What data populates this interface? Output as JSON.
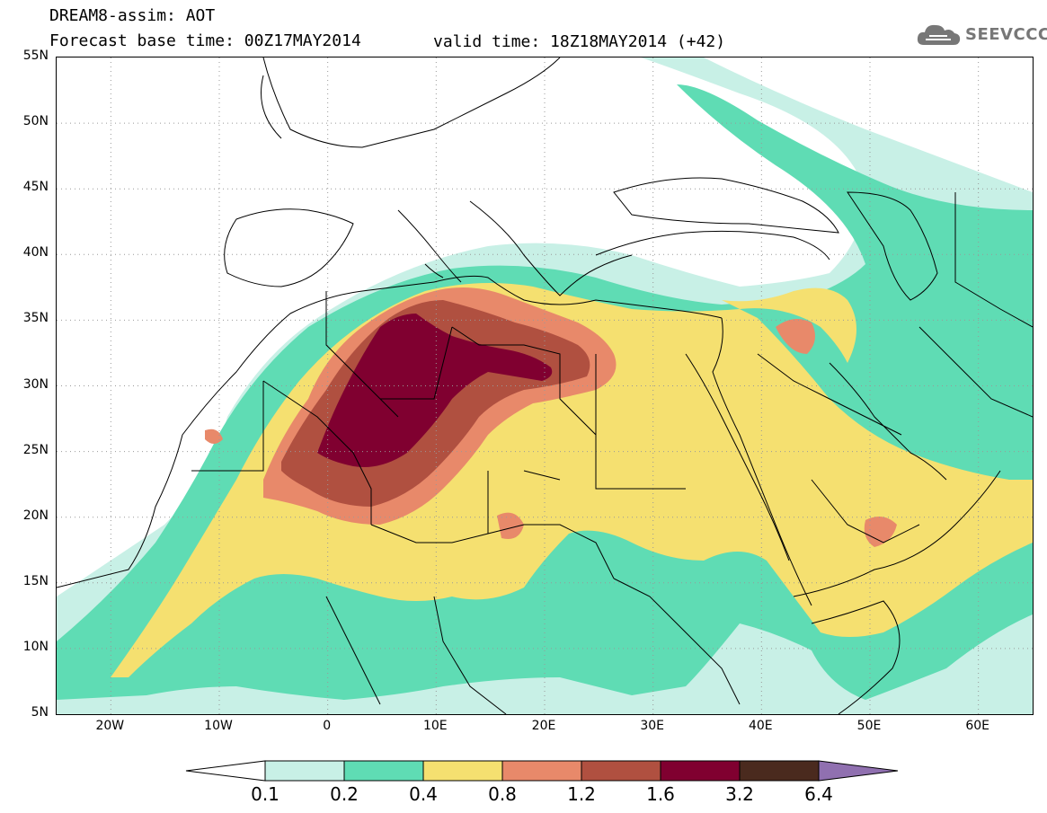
{
  "header": {
    "title": "DREAM8-assim: AOT",
    "base_time": "Forecast base time: 00Z17MAY2014",
    "valid_time": "valid time: 18Z18MAY2014 (+42)"
  },
  "logo": {
    "text": "SEEVCCC",
    "icon": "cloud-icon"
  },
  "map": {
    "lat_labels": [
      "55N",
      "50N",
      "45N",
      "40N",
      "35N",
      "30N",
      "25N",
      "20N",
      "15N",
      "10N",
      "5N"
    ],
    "lon_labels": [
      "20W",
      "10W",
      "0",
      "10E",
      "20E",
      "30E",
      "40E",
      "50E",
      "60E"
    ],
    "lon_range": [
      -25,
      65
    ],
    "lat_range": [
      5,
      55
    ],
    "grid": "dotted"
  },
  "colorbar": {
    "labels": [
      "0.1",
      "0.2",
      "0.4",
      "0.8",
      "1.2",
      "1.6",
      "3.2",
      "6.4"
    ],
    "colors": [
      "#c8f0e6",
      "#5fdcb4",
      "#f5e070",
      "#e8896a",
      "#b05040",
      "#800030",
      "#4a2a1e",
      "#9070b0"
    ]
  }
}
